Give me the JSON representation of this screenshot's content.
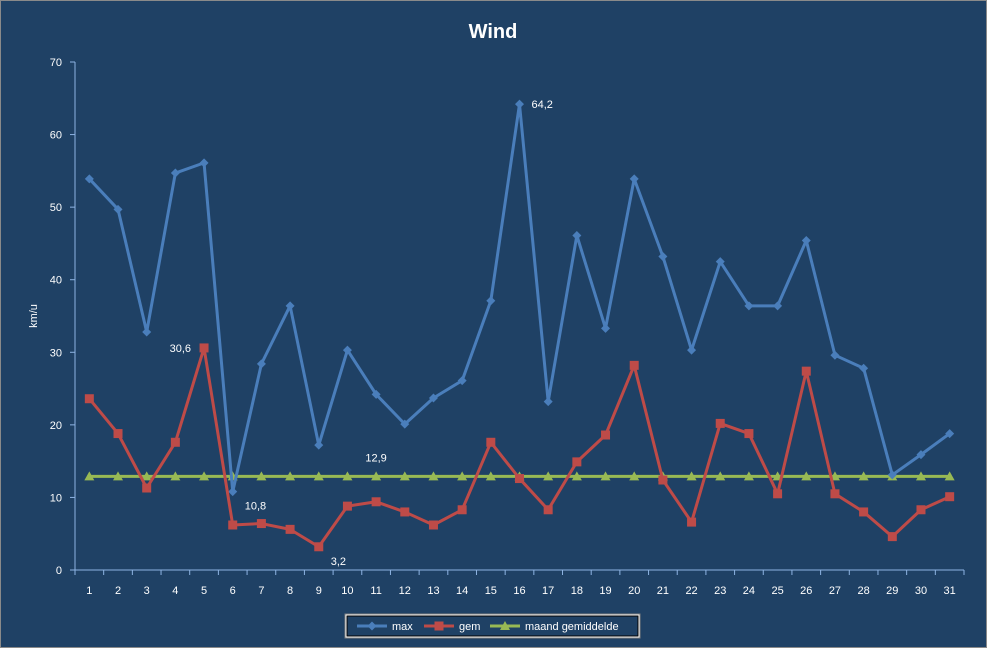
{
  "chart_data": {
    "type": "line",
    "title": "Wind",
    "xlabel": "",
    "ylabel": "km/u",
    "ylim": [
      0,
      70
    ],
    "yticks": [
      0,
      10,
      20,
      30,
      40,
      50,
      60,
      70
    ],
    "grid": false,
    "legend_position": "bottom",
    "categories": [
      "1",
      "2",
      "3",
      "4",
      "5",
      "6",
      "7",
      "8",
      "9",
      "10",
      "11",
      "12",
      "13",
      "14",
      "15",
      "16",
      "17",
      "18",
      "19",
      "20",
      "21",
      "22",
      "23",
      "24",
      "25",
      "26",
      "27",
      "28",
      "29",
      "30",
      "31"
    ],
    "series": [
      {
        "name": "max",
        "color": "#4a7ebb",
        "marker": "diamond",
        "values": [
          53.9,
          49.7,
          32.8,
          54.7,
          56.1,
          10.8,
          28.4,
          36.4,
          17.2,
          30.3,
          24.2,
          20.1,
          23.7,
          26.1,
          37.1,
          64.2,
          23.2,
          46.1,
          33.3,
          53.9,
          43.2,
          30.3,
          42.5,
          36.4,
          36.4,
          45.4,
          29.6,
          27.8,
          13.1,
          15.9,
          18.8
        ]
      },
      {
        "name": "gem",
        "color": "#be4b48",
        "marker": "square",
        "values": [
          23.6,
          18.8,
          11.3,
          17.6,
          30.6,
          6.2,
          6.4,
          5.6,
          3.2,
          8.8,
          9.4,
          8.0,
          6.2,
          8.3,
          17.6,
          12.6,
          8.3,
          14.9,
          18.6,
          28.2,
          12.4,
          6.6,
          20.2,
          18.8,
          10.5,
          27.4,
          10.5,
          8.0,
          4.6,
          8.3,
          10.1
        ]
      },
      {
        "name": "maand gemiddelde",
        "color": "#98b954",
        "marker": "triangle",
        "values": [
          12.9,
          12.9,
          12.9,
          12.9,
          12.9,
          12.9,
          12.9,
          12.9,
          12.9,
          12.9,
          12.9,
          12.9,
          12.9,
          12.9,
          12.9,
          12.9,
          12.9,
          12.9,
          12.9,
          12.9,
          12.9,
          12.9,
          12.9,
          12.9,
          12.9,
          12.9,
          12.9,
          12.9,
          12.9,
          12.9,
          12.9
        ]
      }
    ],
    "annotations": [
      {
        "series": 0,
        "index": 15,
        "text": "64,2",
        "anchor": "right"
      },
      {
        "series": 0,
        "index": 5,
        "text": "10,8",
        "anchor": "below-right"
      },
      {
        "series": 1,
        "index": 4,
        "text": "30,6",
        "anchor": "left"
      },
      {
        "series": 1,
        "index": 8,
        "text": "3,2",
        "anchor": "below-right"
      },
      {
        "series": 2,
        "index": 10,
        "text": "12,9",
        "anchor": "above"
      }
    ]
  },
  "colors": {
    "background": "#1f4165",
    "axis": "#8eb4e3",
    "text": "#ffffff",
    "legend_bg": "#ffffff"
  }
}
